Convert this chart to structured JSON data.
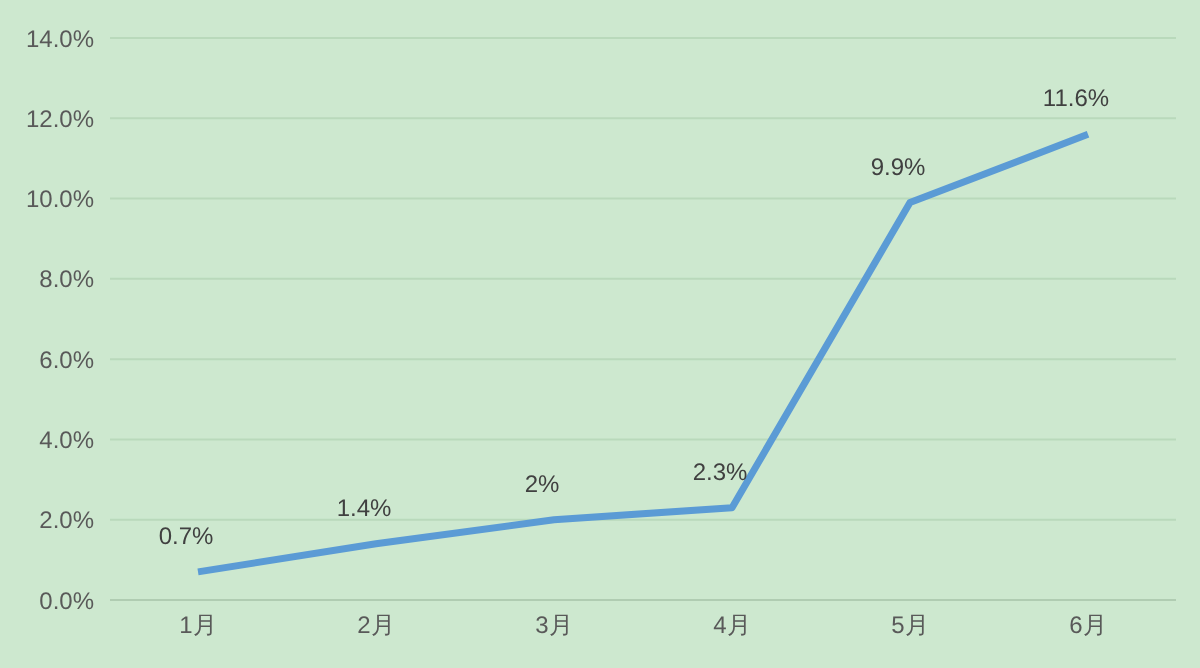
{
  "chart_data": {
    "type": "line",
    "categories": [
      "1月",
      "2月",
      "3月",
      "4月",
      "5月",
      "6月"
    ],
    "series": [
      {
        "color": "#5b9bd5",
        "values": [
          0.7,
          1.4,
          2,
          2.3,
          9.9,
          11.6
        ],
        "value_labels": [
          "0.7%",
          "1.4%",
          "2%",
          "2.3%",
          "9.9%",
          "11.6%"
        ]
      }
    ],
    "ylim": [
      0,
      14
    ],
    "yticks": [
      {
        "value": 0,
        "label": "0.0%"
      },
      {
        "value": 2,
        "label": "2.0%"
      },
      {
        "value": 4,
        "label": "4.0%"
      },
      {
        "value": 6,
        "label": "6.0%"
      },
      {
        "value": 8,
        "label": "8.0%"
      },
      {
        "value": 10,
        "label": "10.0%"
      },
      {
        "value": 12,
        "label": "12.0%"
      },
      {
        "value": 14,
        "label": "14.0%"
      }
    ],
    "grid": "y",
    "legend": false,
    "marker": "none",
    "line_style": "solid"
  }
}
